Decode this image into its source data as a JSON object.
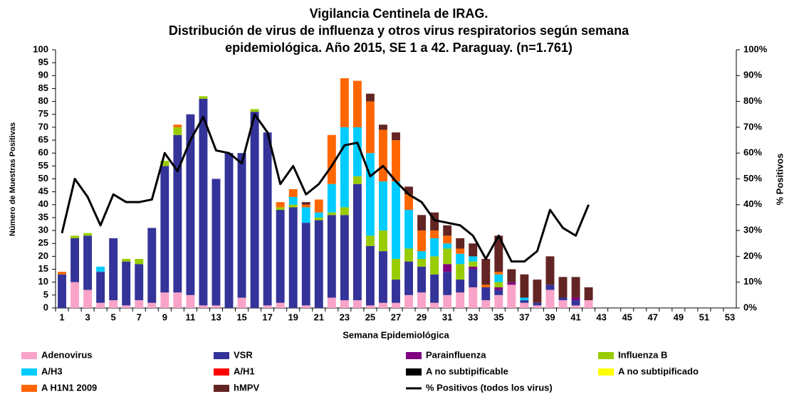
{
  "chart_data": {
    "type": "bar",
    "stacked": true,
    "title": [
      "Vigilancia Centinela de IRAG.",
      "Distribución de virus de influenza y otros virus respiratorios según semana",
      "epidemiológica. Año 2015, SE 1 a 42. Paraguay. (n=1.761)"
    ],
    "x_label": "Semana Epidemiológica",
    "y_label": "Número de Muestras Positivas",
    "y2_label": "% Positivos",
    "categories": [
      1,
      null,
      3,
      null,
      5,
      null,
      7,
      null,
      9,
      null,
      11,
      null,
      13,
      null,
      15,
      null,
      17,
      null,
      19,
      null,
      21,
      null,
      23,
      null,
      25,
      null,
      27,
      null,
      29,
      null,
      31,
      null,
      33,
      null,
      35,
      null,
      37,
      null,
      39,
      null,
      41,
      null,
      43,
      null,
      45,
      null,
      47,
      null,
      49,
      null,
      51,
      null,
      53
    ],
    "ylim": [
      0,
      100
    ],
    "yticks": [
      0,
      5,
      10,
      15,
      20,
      25,
      30,
      35,
      40,
      45,
      50,
      55,
      60,
      65,
      70,
      75,
      80,
      85,
      90,
      95,
      100
    ],
    "y2lim": [
      0,
      100
    ],
    "y2ticks": [
      {
        "value": 0,
        "label": "0%"
      },
      {
        "value": 10,
        "label": "10%"
      },
      {
        "value": 20,
        "label": "20%"
      },
      {
        "value": 30,
        "label": "30%"
      },
      {
        "value": 40,
        "label": "40%"
      },
      {
        "value": 50,
        "label": "50%"
      },
      {
        "value": 60,
        "label": "60%"
      },
      {
        "value": 70,
        "label": "70%"
      },
      {
        "value": 80,
        "label": "80%"
      },
      {
        "value": 90,
        "label": "90%"
      },
      {
        "value": 100,
        "label": "100%"
      }
    ],
    "grid": false,
    "series": [
      {
        "name": "Adenovirus",
        "color": "#f9a3c8",
        "values": [
          0,
          10,
          7,
          2,
          3,
          1,
          3,
          2,
          6,
          6,
          5,
          1,
          1,
          0,
          4,
          0,
          1,
          2,
          0,
          1,
          0,
          4,
          3,
          3,
          1,
          2,
          2,
          5,
          6,
          2,
          5,
          6,
          8,
          3,
          5,
          9,
          2,
          1,
          7,
          3,
          1,
          3,
          null,
          null,
          null,
          null,
          null,
          null,
          null,
          null,
          null,
          null,
          null
        ]
      },
      {
        "name": "VSR",
        "color": "#333399",
        "values": [
          13,
          17,
          21,
          12,
          24,
          17,
          14,
          29,
          49,
          61,
          70,
          80,
          49,
          60,
          56,
          76,
          67,
          36,
          39,
          32,
          34,
          32,
          33,
          45,
          23,
          20,
          9,
          13,
          10,
          11,
          9,
          5,
          7,
          5,
          2,
          0,
          1,
          1,
          2,
          1,
          2,
          0,
          null,
          null,
          null,
          null,
          null,
          null,
          null,
          null,
          null,
          null,
          null
        ]
      },
      {
        "name": "Parainfluenza",
        "color": "#800080",
        "values": [
          0,
          0,
          0,
          0,
          0,
          0,
          0,
          0,
          0,
          0,
          0,
          0,
          0,
          0,
          0,
          0,
          0,
          0,
          0,
          0,
          0,
          0,
          0,
          0,
          0,
          0,
          0,
          0,
          0,
          0,
          3,
          0,
          1,
          0,
          1,
          1,
          0,
          0,
          0,
          0,
          1,
          0,
          null,
          null,
          null,
          null,
          null,
          null,
          null,
          null,
          null,
          null,
          null
        ]
      },
      {
        "name": "Influenza  B",
        "color": "#99cc00",
        "values": [
          0,
          1,
          1,
          0,
          0,
          1,
          2,
          0,
          2,
          3,
          0,
          1,
          0,
          0,
          0,
          1,
          0,
          1,
          1,
          0,
          1,
          1,
          3,
          3,
          4,
          8,
          8,
          5,
          3,
          7,
          6,
          6,
          2,
          0,
          2,
          0,
          0,
          0,
          0,
          0,
          0,
          0,
          null,
          null,
          null,
          null,
          null,
          null,
          null,
          null,
          null,
          null,
          null
        ]
      },
      {
        "name": "A/H3",
        "color": "#00ccff",
        "values": [
          0,
          0,
          0,
          2,
          0,
          0,
          0,
          0,
          0,
          0,
          0,
          0,
          0,
          0,
          0,
          0,
          0,
          0,
          3,
          6,
          2,
          11,
          31,
          19,
          32,
          19,
          30,
          15,
          3,
          7,
          2,
          4,
          2,
          0,
          3,
          0,
          1,
          0,
          0,
          0,
          0,
          0,
          null,
          null,
          null,
          null,
          null,
          null,
          null,
          null,
          null,
          null,
          null
        ]
      },
      {
        "name": "A/H1",
        "color": "#ff0000",
        "values": [
          0,
          0,
          0,
          0,
          0,
          0,
          0,
          0,
          0,
          0,
          0,
          0,
          0,
          0,
          0,
          0,
          0,
          0,
          0,
          0,
          0,
          0,
          0,
          0,
          0,
          0,
          0,
          0,
          0,
          0,
          0,
          0,
          0,
          0,
          0,
          0,
          0,
          0,
          0,
          0,
          0,
          0,
          null,
          null,
          null,
          null,
          null,
          null,
          null,
          null,
          null,
          null,
          null
        ]
      },
      {
        "name": "A no subtipificable",
        "color": "#000000",
        "values": [
          0,
          0,
          0,
          0,
          0,
          0,
          0,
          0,
          0,
          0,
          0,
          0,
          0,
          0,
          0,
          0,
          0,
          0,
          0,
          0,
          0,
          0,
          0,
          0,
          0,
          0,
          0,
          0,
          0,
          0,
          0,
          0,
          0,
          0,
          0,
          0,
          0,
          0,
          0,
          0,
          0,
          0,
          null,
          null,
          null,
          null,
          null,
          null,
          null,
          null,
          null,
          null,
          null
        ]
      },
      {
        "name": "A no subtipificado",
        "color": "#ffff00",
        "values": [
          0,
          0,
          0,
          0,
          0,
          0,
          0,
          0,
          0,
          0,
          0,
          0,
          0,
          0,
          0,
          0,
          0,
          0,
          0,
          0,
          0,
          0,
          0,
          0,
          0,
          0,
          0,
          0,
          0,
          0,
          0,
          0,
          0,
          0,
          0,
          0,
          0,
          0,
          0,
          0,
          0,
          0,
          null,
          null,
          null,
          null,
          null,
          null,
          null,
          null,
          null,
          null,
          null
        ]
      },
      {
        "name": "A H1N1 2009",
        "color": "#ff6600",
        "values": [
          1,
          0,
          0,
          0,
          0,
          0,
          0,
          0,
          0,
          1,
          0,
          0,
          0,
          0,
          0,
          0,
          0,
          2,
          3,
          1,
          5,
          19,
          19,
          18,
          20,
          20,
          16,
          6,
          8,
          3,
          3,
          2,
          0,
          1,
          1,
          0,
          0,
          0,
          0,
          0,
          0,
          0,
          null,
          null,
          null,
          null,
          null,
          null,
          null,
          null,
          null,
          null,
          null
        ]
      },
      {
        "name": "hMPV",
        "color": "#632523",
        "values": [
          0,
          0,
          0,
          0,
          0,
          0,
          0,
          0,
          0,
          0,
          0,
          0,
          0,
          0,
          0,
          0,
          0,
          0,
          0,
          1,
          0,
          0,
          0,
          0,
          3,
          2,
          3,
          3,
          6,
          7,
          4,
          4,
          5,
          10,
          14,
          5,
          9,
          9,
          11,
          8,
          8,
          5,
          null,
          null,
          null,
          null,
          null,
          null,
          null,
          null,
          null,
          null,
          null
        ]
      },
      {
        "name": "% Positivos (todos los virus)",
        "color": "#000000",
        "type": "line",
        "axis": "y2",
        "values": [
          29,
          50,
          43,
          32,
          44,
          41,
          41,
          42,
          60,
          53,
          65,
          74,
          61,
          60,
          56,
          75,
          68,
          48,
          55,
          44,
          48,
          55,
          63,
          64,
          51,
          55,
          49,
          44,
          41,
          34,
          33,
          32,
          28,
          19,
          28,
          18,
          18,
          22,
          38,
          31,
          28,
          40,
          null,
          null,
          null,
          null,
          null,
          null,
          null,
          null,
          null,
          null,
          null
        ]
      }
    ]
  }
}
